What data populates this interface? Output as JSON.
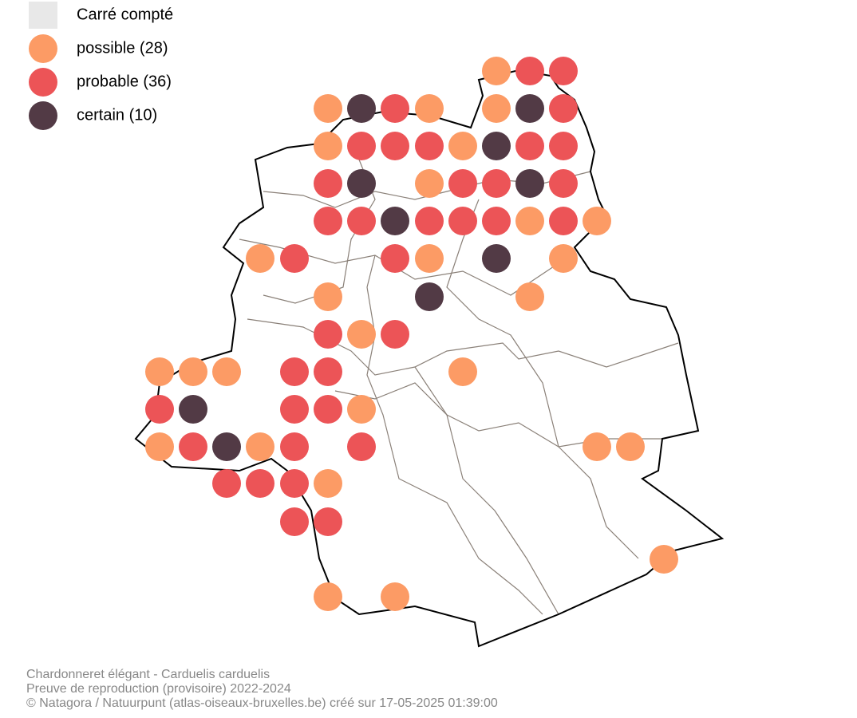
{
  "legend": [
    {
      "label": "Carré compté",
      "color": "#e8e8e8"
    },
    {
      "label": "possible (28)",
      "color": "#fc9b65"
    },
    {
      "label": "probable (36)",
      "color": "#ec5457"
    },
    {
      "label": "certain (10)",
      "color": "#523a45"
    }
  ],
  "caption": [
    "Chardonneret élégant - Carduelis carduelis",
    "Preuve de reproduction (provisoire) 2022-2024",
    "© Natagora / Natuurpunt (atlas-oiseaux-bruxelles.be) créé sur 17-05-2025 01:39:00"
  ]
}
